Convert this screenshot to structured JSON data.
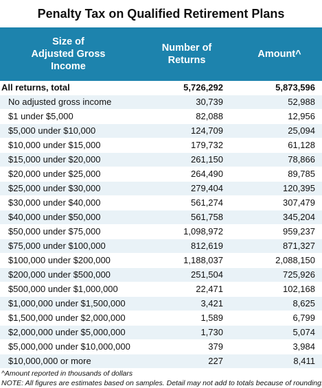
{
  "title": "Penalty Tax on Qualified Retirement Plans",
  "columns": {
    "col1_line1": "Size of",
    "col1_line2": "Adjusted Gross",
    "col1_line3": "Income",
    "col2_line1": "Number of",
    "col2_line2": "Returns",
    "col3": "Amount^"
  },
  "rows": [
    {
      "label": "All returns, total",
      "returns": "5,726,292",
      "amount": "5,873,596"
    },
    {
      "label": "No adjusted gross income",
      "returns": "30,739",
      "amount": "52,988"
    },
    {
      "label": "$1 under $5,000",
      "returns": "82,088",
      "amount": "12,956"
    },
    {
      "label": "$5,000 under $10,000",
      "returns": "124,709",
      "amount": "25,094"
    },
    {
      "label": "$10,000 under $15,000",
      "returns": "179,732",
      "amount": "61,128"
    },
    {
      "label": "$15,000 under $20,000",
      "returns": "261,150",
      "amount": "78,866"
    },
    {
      "label": "$20,000 under $25,000",
      "returns": "264,490",
      "amount": "89,785"
    },
    {
      "label": "$25,000 under $30,000",
      "returns": "279,404",
      "amount": "120,395"
    },
    {
      "label": "$30,000 under $40,000",
      "returns": "561,274",
      "amount": "307,479"
    },
    {
      "label": "$40,000 under $50,000",
      "returns": "561,758",
      "amount": "345,204"
    },
    {
      "label": "$50,000 under $75,000",
      "returns": "1,098,972",
      "amount": "959,237"
    },
    {
      "label": "$75,000 under $100,000",
      "returns": "812,619",
      "amount": "871,327"
    },
    {
      "label": "$100,000 under $200,000",
      "returns": "1,188,037",
      "amount": "2,088,150"
    },
    {
      "label": "$200,000 under $500,000",
      "returns": "251,504",
      "amount": "725,926"
    },
    {
      "label": "$500,000 under $1,000,000",
      "returns": "22,471",
      "amount": "102,168"
    },
    {
      "label": "$1,000,000 under $1,500,000",
      "returns": "3,421",
      "amount": "8,625"
    },
    {
      "label": "$1,500,000 under $2,000,000",
      "returns": "1,589",
      "amount": "6,799"
    },
    {
      "label": "$2,000,000 under $5,000,000",
      "returns": "1,730",
      "amount": "5,074"
    },
    {
      "label": "$5,000,000 under $10,000,000",
      "returns": "379",
      "amount": "3,984"
    },
    {
      "label": "$10,000,000 or more",
      "returns": "227",
      "amount": "8,411"
    }
  ],
  "notes": {
    "amount_note": "^Amount reported in thousands of dollars",
    "estimate_note": "NOTE: All figures are estimates based on samples. Detail may not add to totals because of rounding."
  }
}
